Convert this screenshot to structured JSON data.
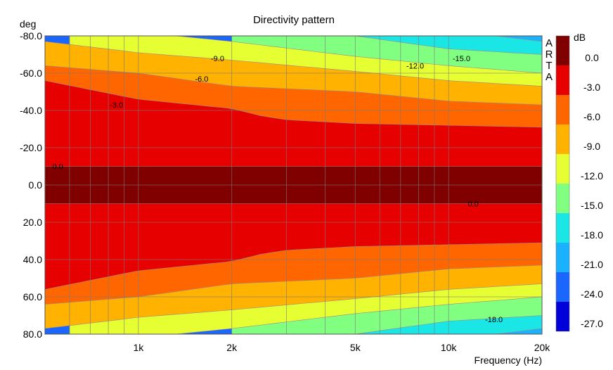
{
  "chart_data": {
    "type": "heatmap",
    "title": "Directivity pattern",
    "xlabel": "Frequency (Hz)",
    "ylabel": "deg",
    "x_scale": "log",
    "xlim": [
      500,
      20000
    ],
    "ylim": [
      -80,
      80
    ],
    "x_ticks": [
      {
        "value": 1000,
        "label": "1k"
      },
      {
        "value": 2000,
        "label": "2k"
      },
      {
        "value": 5000,
        "label": "5k"
      },
      {
        "value": 10000,
        "label": "10k"
      },
      {
        "value": 20000,
        "label": "20k"
      }
    ],
    "y_ticks": [
      {
        "value": -80,
        "label": "-80.0"
      },
      {
        "value": -60,
        "label": "-60.0"
      },
      {
        "value": -40,
        "label": "-40.0"
      },
      {
        "value": -20,
        "label": "-20.0"
      },
      {
        "value": 0,
        "label": "0.0"
      },
      {
        "value": 20,
        "label": "20.0"
      },
      {
        "value": 40,
        "label": "40.0"
      },
      {
        "value": 60,
        "label": "60.0"
      },
      {
        "value": 80,
        "label": "80.0"
      }
    ],
    "grid": true,
    "colorbar": {
      "unit": "dB",
      "levels": [
        0,
        -3,
        -6,
        -9,
        -12,
        -15,
        -18,
        -21,
        -24,
        -27
      ],
      "labels": [
        "0.0",
        "-3.0",
        "-6.0",
        "-9.0",
        "-12.0",
        "-15.0",
        "-18.0",
        "-21.0",
        "-24.0",
        "-27.0"
      ],
      "colors": [
        "#800000",
        "#e60000",
        "#ff6600",
        "#ffb200",
        "#e6ff33",
        "#80ff80",
        "#1ae6e6",
        "#1ab2ff",
        "#1a66ff",
        "#0000d9"
      ]
    },
    "contour_boundaries": [
      {
        "level": 0.0,
        "freq": [
          500,
          1000,
          2000,
          5000,
          10000,
          20000
        ],
        "angle": [
          10,
          10,
          10,
          10,
          10,
          10
        ]
      },
      {
        "level": -3.0,
        "freq": [
          500,
          1000,
          2000,
          2500,
          3000,
          5000,
          10000,
          20000
        ],
        "angle": [
          56,
          46,
          41,
          37,
          35,
          33,
          32,
          31
        ]
      },
      {
        "level": -6.0,
        "freq": [
          500,
          1000,
          2000,
          5000,
          10000,
          20000
        ],
        "angle": [
          64,
          60,
          53,
          50,
          45,
          43
        ]
      },
      {
        "level": -9.0,
        "freq": [
          500,
          1000,
          2000,
          5000,
          10000,
          20000
        ],
        "angle": [
          77,
          71,
          67,
          61,
          56,
          53
        ]
      },
      {
        "level": -12.0,
        "freq": [
          600,
          1000,
          2000,
          5000,
          10000,
          20000
        ],
        "angle": [
          86,
          82,
          77,
          69,
          64,
          60
        ]
      },
      {
        "level": -15.0,
        "freq": [
          2000,
          5000,
          10000,
          20000
        ],
        "angle": [
          87,
          80,
          73,
          70
        ]
      },
      {
        "level": -18.0,
        "freq": [
          5000,
          10000,
          20000
        ],
        "angle": [
          89,
          83,
          77
        ]
      },
      {
        "level": -21.0,
        "freq": [
          10000,
          20000
        ],
        "angle": [
          90,
          84
        ]
      }
    ],
    "contour_labels": [
      {
        "text": "0.0",
        "freq": 550,
        "angle": -10
      },
      {
        "text": "0.0",
        "freq": 12000,
        "angle": 10
      },
      {
        "text": "-3.0",
        "freq": 850,
        "angle": -43
      },
      {
        "text": "-6.0",
        "freq": 1600,
        "angle": -57
      },
      {
        "text": "-9.0",
        "freq": 1800,
        "angle": -68
      },
      {
        "text": "-12.0",
        "freq": 7800,
        "angle": -64
      },
      {
        "text": "-15.0",
        "freq": 11000,
        "angle": -68
      },
      {
        "text": "-18.0",
        "freq": 14000,
        "angle": 72
      }
    ],
    "watermark": "ARTA"
  }
}
